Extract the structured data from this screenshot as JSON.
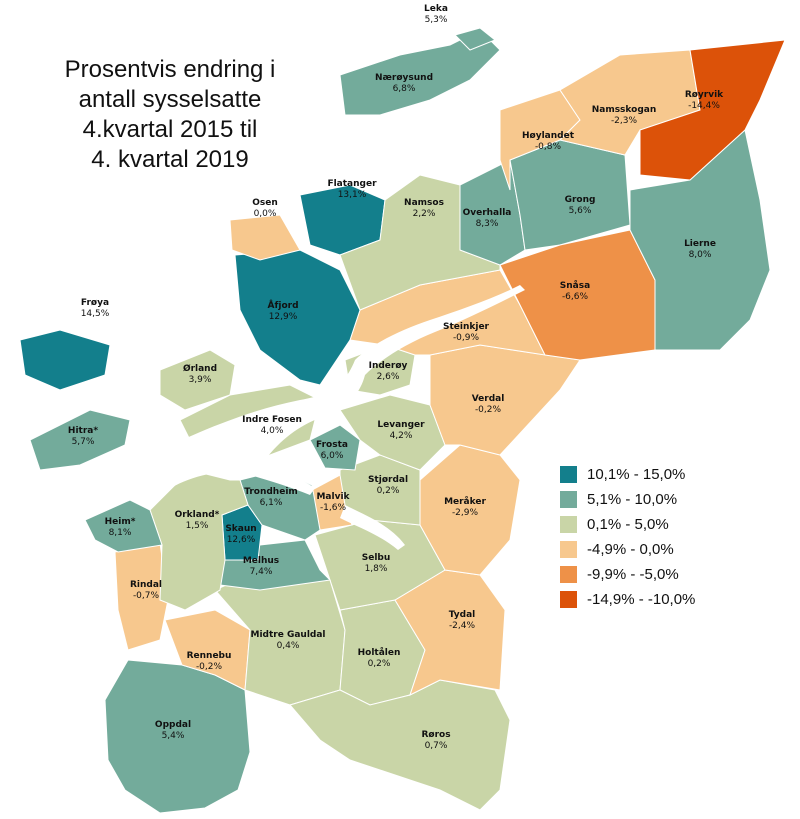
{
  "title_lines": [
    "Prosentvis endring i",
    "antall sysselsatte",
    "4.kvartal 2015 til",
    "4. kvartal 2019"
  ],
  "legend": [
    {
      "label": "10,1% - 15,0%",
      "color": "#137f8c"
    },
    {
      "label": "5,1% - 10,0%",
      "color": "#73ab9b"
    },
    {
      "label": "0,1% - 5,0%",
      "color": "#c9d5a7"
    },
    {
      "label": "-4,9% - 0,0%",
      "color": "#f7c88e"
    },
    {
      "label": "-9,9% - -5,0%",
      "color": "#ee9148"
    },
    {
      "label": "-14,9% - -10,0%",
      "color": "#dc5209"
    }
  ],
  "municipalities": [
    {
      "name": "Leka",
      "value": "5,3%",
      "class": 1
    },
    {
      "name": "Nærøysund",
      "value": "6,8%",
      "class": 1
    },
    {
      "name": "Røyrvik",
      "value": "-14,4%",
      "class": 5
    },
    {
      "name": "Namsskogan",
      "value": "-2,3%",
      "class": 3
    },
    {
      "name": "Høylandet",
      "value": "-0,8%",
      "class": 3
    },
    {
      "name": "Flatanger",
      "value": "13,1%",
      "class": 0
    },
    {
      "name": "Osen",
      "value": "0,0%",
      "class": 3
    },
    {
      "name": "Namsos",
      "value": "2,2%",
      "class": 2
    },
    {
      "name": "Overhalla",
      "value": "8,3%",
      "class": 1
    },
    {
      "name": "Grong",
      "value": "5,6%",
      "class": 1
    },
    {
      "name": "Lierne",
      "value": "8,0%",
      "class": 1
    },
    {
      "name": "Snåsa",
      "value": "-6,6%",
      "class": 4
    },
    {
      "name": "Frøya",
      "value": "14,5%",
      "class": 0
    },
    {
      "name": "Åfjord",
      "value": "12,9%",
      "class": 0
    },
    {
      "name": "Steinkjer",
      "value": "-0,9%",
      "class": 3
    },
    {
      "name": "Ørland",
      "value": "3,9%",
      "class": 2
    },
    {
      "name": "Inderøy",
      "value": "2,6%",
      "class": 2
    },
    {
      "name": "Verdal",
      "value": "-0,2%",
      "class": 3
    },
    {
      "name": "Indre Fosen",
      "value": "4,0%",
      "class": 2
    },
    {
      "name": "Levanger",
      "value": "4,2%",
      "class": 2
    },
    {
      "name": "Hitra*",
      "value": "5,7%",
      "class": 1
    },
    {
      "name": "Frosta",
      "value": "6,0%",
      "class": 1
    },
    {
      "name": "Stjørdal",
      "value": "0,2%",
      "class": 2
    },
    {
      "name": "Trondheim",
      "value": "6,1%",
      "class": 1
    },
    {
      "name": "Malvik",
      "value": "-1,6%",
      "class": 3
    },
    {
      "name": "Meråker",
      "value": "-2,9%",
      "class": 3
    },
    {
      "name": "Heim*",
      "value": "8,1%",
      "class": 1
    },
    {
      "name": "Orkland*",
      "value": "1,5%",
      "class": 2
    },
    {
      "name": "Skaun",
      "value": "12,6%",
      "class": 0
    },
    {
      "name": "Melhus",
      "value": "7,4%",
      "class": 1
    },
    {
      "name": "Selbu",
      "value": "1,8%",
      "class": 2
    },
    {
      "name": "Rindal",
      "value": "-0,7%",
      "class": 3
    },
    {
      "name": "Tydal",
      "value": "-2,4%",
      "class": 3
    },
    {
      "name": "Midtre Gauldal",
      "value": "0,4%",
      "class": 2
    },
    {
      "name": "Rennebu",
      "value": "-0,2%",
      "class": 3
    },
    {
      "name": "Holtålen",
      "value": "0,2%",
      "class": 2
    },
    {
      "name": "Oppdal",
      "value": "5,4%",
      "class": 1
    },
    {
      "name": "Røros",
      "value": "0,7%",
      "class": 2
    }
  ]
}
